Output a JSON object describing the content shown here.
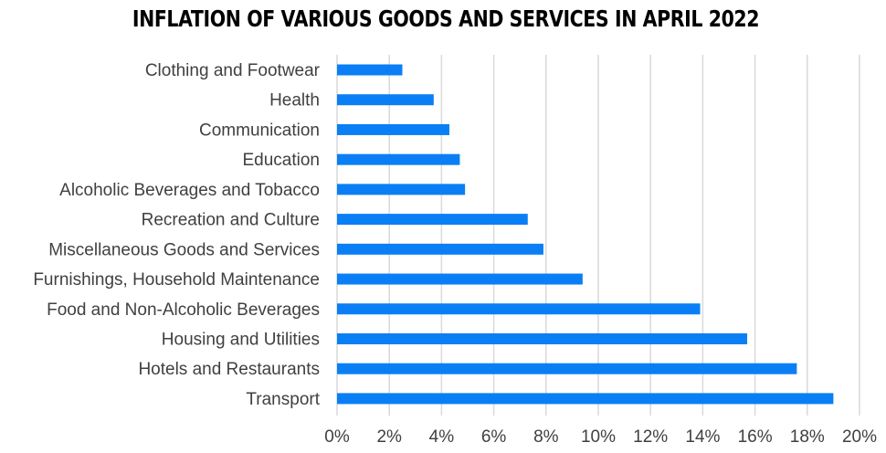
{
  "chart_data": {
    "type": "bar",
    "orientation": "horizontal",
    "title": "INFLATION OF VARIOUS GOODS AND SERVICES IN APRIL 2022",
    "xlabel": "",
    "ylabel": "",
    "categories": [
      "Clothing and Footwear",
      "Health",
      "Communication",
      "Education",
      "Alcoholic Beverages and Tobacco",
      "Recreation and Culture",
      "Miscellaneous Goods and Services",
      "Furnishings, Household Maintenance",
      "Food and Non-Alcoholic Beverages",
      "Housing and Utilities",
      "Hotels and Restaurants",
      "Transport"
    ],
    "values": [
      2.5,
      3.7,
      4.3,
      4.7,
      4.9,
      7.3,
      7.9,
      9.4,
      13.9,
      15.7,
      17.6,
      19.0
    ],
    "value_unit": "%",
    "xlim": [
      0,
      20
    ],
    "xticks": [
      0,
      2,
      4,
      6,
      8,
      10,
      12,
      14,
      16,
      18,
      20
    ],
    "xtick_labels": [
      "0%",
      "2%",
      "4%",
      "6%",
      "8%",
      "10%",
      "12%",
      "14%",
      "16%",
      "18%",
      "20%"
    ],
    "grid": "vertical",
    "legend": "none",
    "bar_color": "#0A7FF5"
  }
}
